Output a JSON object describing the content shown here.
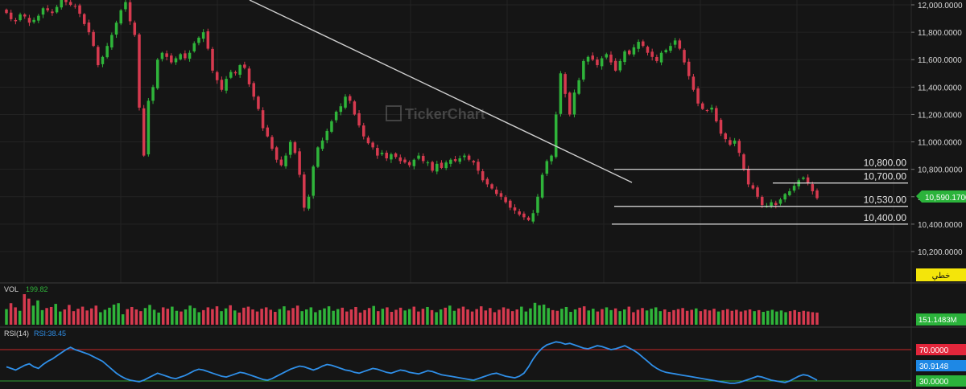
{
  "colors": {
    "background": "#151515",
    "up": "#2fb43a",
    "down": "#d63a4f",
    "grid": "#232323",
    "trendline": "#cfcfcf",
    "rsi_line": "#2f8fe8",
    "rsi_upper": "#c62828",
    "rsi_lower": "#2e9e34",
    "badge_yellow": "#f4e50a",
    "badge_green": "#2bb33b",
    "badge_red": "#e3263b",
    "badge_blue": "#1e88e5"
  },
  "watermark": "TickerChart",
  "price_panel": {
    "y_ticks": [
      "12,000.0000",
      "11,800.0000",
      "11,600.0000",
      "11,400.0000",
      "11,200.0000",
      "11,000.0000",
      "10,800.0000",
      "10,600.0000",
      "10,400.0000",
      "10,200.0000"
    ],
    "current_price_badge": "10,590.1700",
    "language_badge": "خطي"
  },
  "levels": [
    {
      "label": "10,800.00",
      "value": 10800
    },
    {
      "label": "10,700.00",
      "value": 10700
    },
    {
      "label": "10,530.00",
      "value": 10530
    },
    {
      "label": "10,400.00",
      "value": 10400
    }
  ],
  "volume_panel": {
    "label": "VOL",
    "value": "199.82",
    "badge": "151.1483M"
  },
  "rsi_panel": {
    "label": "RSI(14)",
    "value_label": "RSI:38.45",
    "upper_badge": "70.0000",
    "current_badge": "30.9148",
    "lower_badge": "30.0000"
  },
  "chart_data": {
    "type": "candlestick",
    "y_range": [
      10150,
      12020
    ],
    "close_series": [
      11940,
      11895,
      11880,
      11930,
      11915,
      11870,
      11890,
      11920,
      11975,
      11960,
      11940,
      11985,
      12050,
      12020,
      12000,
      11990,
      11935,
      11860,
      11800,
      11700,
      11560,
      11620,
      11700,
      11780,
      11870,
      11960,
      12020,
      11880,
      11780,
      11250,
      10900,
      11300,
      11400,
      11600,
      11650,
      11620,
      11580,
      11610,
      11640,
      11610,
      11650,
      11720,
      11760,
      11800,
      11680,
      11520,
      11450,
      11380,
      11460,
      11510,
      11500,
      11560,
      11540,
      11420,
      11330,
      11240,
      11100,
      11040,
      10950,
      10870,
      10830,
      10900,
      11000,
      10920,
      10760,
      10520,
      10600,
      10820,
      10960,
      11010,
      11080,
      11150,
      11220,
      11260,
      11330,
      11300,
      11200,
      11120,
      11040,
      10990,
      10960,
      10900,
      10920,
      10880,
      10910,
      10890,
      10860,
      10850,
      10830,
      10870,
      10900,
      10860,
      10850,
      10790,
      10840,
      10810,
      10850,
      10870,
      10860,
      10880,
      10900,
      10870,
      10850,
      10790,
      10720,
      10690,
      10660,
      10620,
      10600,
      10560,
      10520,
      10500,
      10470,
      10450,
      10430,
      10480,
      10600,
      10760,
      10860,
      10900,
      11200,
      11500,
      11350,
      11200,
      11360,
      11450,
      11590,
      11620,
      11600,
      11560,
      11610,
      11640,
      11580,
      11520,
      11590,
      11660,
      11640,
      11690,
      11730,
      11700,
      11650,
      11620,
      11590,
      11650,
      11670,
      11700,
      11740,
      11680,
      11580,
      11480,
      11380,
      11280,
      11240,
      11230,
      11250,
      11150,
      11060,
      11020,
      10980,
      11010,
      10920,
      10800,
      10690,
      10660,
      10600,
      10540,
      10530,
      10560,
      10540,
      10580,
      10620,
      10640,
      10680,
      10720,
      10740,
      10700,
      10640,
      10590
    ],
    "volume_series": [
      45,
      62,
      50,
      40,
      88,
      75,
      55,
      70,
      42,
      48,
      51,
      60,
      38,
      44,
      57,
      39,
      46,
      52,
      41,
      47,
      55,
      36,
      43,
      49,
      58,
      62,
      30,
      45,
      51,
      44,
      39,
      48,
      57,
      43,
      35,
      50,
      46,
      52,
      40,
      38,
      44,
      55,
      48,
      36,
      42,
      50,
      45,
      53,
      39,
      47,
      56,
      41,
      35,
      49,
      52,
      44,
      38,
      46,
      50,
      43,
      37,
      45,
      53,
      41,
      48,
      55,
      39,
      44,
      50,
      36,
      42,
      47,
      53,
      40,
      45,
      49,
      38,
      44,
      51,
      35,
      42,
      48,
      54,
      39,
      46,
      50,
      37,
      43,
      49,
      41,
      45,
      52,
      38,
      46,
      51,
      42,
      36,
      44,
      49,
      55,
      40,
      47,
      52,
      44,
      38,
      45,
      53,
      41,
      48,
      36,
      43,
      50,
      46,
      39,
      44,
      52,
      38,
      47,
      63,
      56,
      58,
      48,
      42,
      40,
      46,
      51,
      37,
      44,
      49,
      53,
      41,
      46,
      38,
      45,
      50,
      42,
      47,
      39,
      44,
      52,
      36,
      43,
      48,
      41,
      46,
      50,
      39,
      44,
      37,
      42,
      45,
      48,
      40,
      43,
      47,
      39,
      44,
      41,
      46,
      38,
      42,
      45,
      40,
      43,
      38,
      41,
      44,
      39,
      42,
      37,
      40,
      43,
      38,
      41,
      36,
      39,
      42,
      37,
      40,
      38,
      36,
      35
    ],
    "rsi_series": [
      48,
      46,
      44,
      47,
      50,
      52,
      48,
      46,
      51,
      55,
      58,
      62,
      66,
      70,
      73,
      70,
      68,
      66,
      64,
      61,
      58,
      55,
      50,
      45,
      40,
      36,
      33,
      31,
      30,
      29,
      31,
      34,
      37,
      40,
      38,
      36,
      34,
      33,
      35,
      37,
      40,
      43,
      45,
      44,
      42,
      40,
      38,
      36,
      35,
      37,
      39,
      41,
      40,
      38,
      36,
      34,
      32,
      31,
      33,
      36,
      39,
      42,
      45,
      47,
      49,
      48,
      46,
      44,
      46,
      49,
      51,
      50,
      48,
      46,
      44,
      43,
      41,
      40,
      42,
      44,
      46,
      45,
      43,
      41,
      40,
      42,
      44,
      43,
      41,
      40,
      39,
      41,
      43,
      42,
      40,
      38,
      37,
      36,
      35,
      34,
      33,
      32,
      31,
      33,
      35,
      37,
      39,
      40,
      38,
      36,
      35,
      34,
      36,
      40,
      48,
      58,
      66,
      72,
      76,
      78,
      80,
      79,
      77,
      78,
      76,
      74,
      72,
      71,
      73,
      75,
      74,
      72,
      70,
      71,
      73,
      75,
      72,
      69,
      65,
      60,
      55,
      50,
      46,
      43,
      41,
      40,
      39,
      38,
      37,
      36,
      35,
      34,
      33,
      32,
      31,
      30,
      29,
      28,
      27,
      27,
      28,
      30,
      32,
      34,
      36,
      35,
      33,
      31,
      30,
      29,
      28,
      30,
      33,
      36,
      38,
      37,
      34,
      31
    ]
  }
}
